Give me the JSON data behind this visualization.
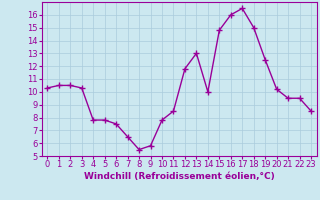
{
  "x": [
    0,
    1,
    2,
    3,
    4,
    5,
    6,
    7,
    8,
    9,
    10,
    11,
    12,
    13,
    14,
    15,
    16,
    17,
    18,
    19,
    20,
    21,
    22,
    23
  ],
  "y": [
    10.3,
    10.5,
    10.5,
    10.3,
    7.8,
    7.8,
    7.5,
    6.5,
    5.5,
    5.8,
    7.8,
    8.5,
    11.8,
    13.0,
    10.0,
    14.8,
    16.0,
    16.5,
    15.0,
    12.5,
    10.2,
    9.5,
    9.5,
    8.5
  ],
  "line_color": "#990099",
  "marker": "+",
  "markersize": 4,
  "linewidth": 1.0,
  "background_color": "#cce8f0",
  "grid_color": "#aaccdd",
  "xlabel": "Windchill (Refroidissement éolien,°C)",
  "xlabel_color": "#990099",
  "xlabel_fontsize": 6.5,
  "tick_color": "#990099",
  "tick_fontsize": 6,
  "ylim": [
    5,
    17
  ],
  "yticks": [
    5,
    6,
    7,
    8,
    9,
    10,
    11,
    12,
    13,
    14,
    15,
    16
  ],
  "xlim": [
    -0.5,
    23.5
  ],
  "xticks": [
    0,
    1,
    2,
    3,
    4,
    5,
    6,
    7,
    8,
    9,
    10,
    11,
    12,
    13,
    14,
    15,
    16,
    17,
    18,
    19,
    20,
    21,
    22,
    23
  ]
}
